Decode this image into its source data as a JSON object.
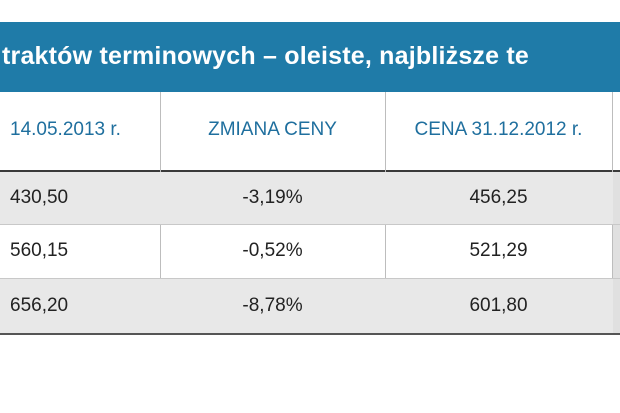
{
  "header": {
    "title": "traktów terminowych – oleiste, najbliższe te"
  },
  "table": {
    "columns": [
      "14.05.2013 r.",
      "ZMIANA CENY",
      "CENA 31.12.2012 r."
    ],
    "rows": [
      [
        "430,50",
        "-3,19%",
        "456,25"
      ],
      [
        "560,15",
        "-0,52%",
        "521,29"
      ],
      [
        "656,20",
        "-8,78%",
        "601,80"
      ]
    ]
  }
}
